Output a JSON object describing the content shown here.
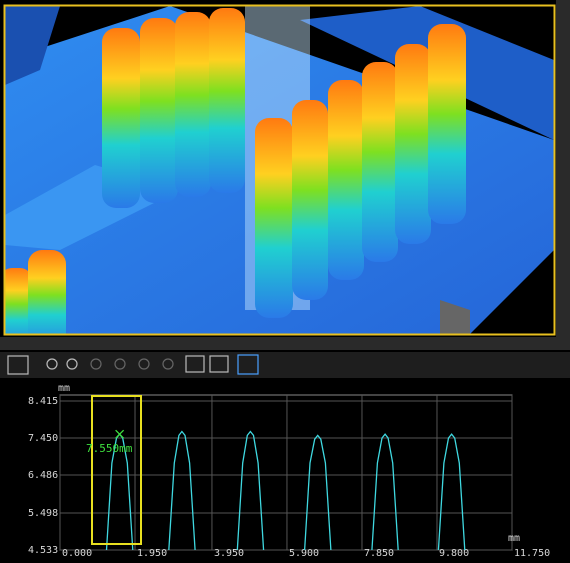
{
  "chart_data": {
    "type": "line",
    "ylabel": "mm",
    "xlabel": "mm",
    "annotation": "7.550mm",
    "x": [
      1.2,
      1.35,
      1.47,
      1.55,
      1.63,
      1.75,
      1.9,
      2.36,
      2.82,
      2.97,
      3.09,
      3.17,
      3.25,
      3.37,
      3.52,
      4.06,
      4.6,
      4.75,
      4.87,
      4.95,
      5.03,
      5.15,
      5.3,
      5.82,
      6.35,
      6.5,
      6.62,
      6.7,
      6.78,
      6.9,
      7.05,
      7.57,
      8.1,
      8.25,
      8.37,
      8.45,
      8.53,
      8.65,
      8.8,
      9.31,
      9.83,
      9.98,
      10.1,
      10.18,
      10.26,
      10.38,
      10.53
    ],
    "series": [
      {
        "color": "#3fd8e0",
        "values": [
          4.4,
          6.8,
          7.45,
          7.55,
          7.45,
          6.8,
          4.4,
          null,
          4.4,
          6.8,
          7.52,
          7.62,
          7.52,
          6.8,
          4.4,
          null,
          4.4,
          6.8,
          7.52,
          7.62,
          7.52,
          6.8,
          4.4,
          null,
          4.4,
          6.8,
          7.42,
          7.52,
          7.42,
          6.8,
          4.4,
          null,
          4.4,
          6.8,
          7.45,
          7.55,
          7.45,
          6.8,
          4.4,
          null,
          4.4,
          6.8,
          7.45,
          7.55,
          7.45,
          6.8,
          4.4
        ]
      }
    ],
    "xlim": [
      0,
      11.75
    ],
    "xticks": [
      {
        "value": 0,
        "label": "0.000"
      },
      {
        "value": 1.95,
        "label": "1.950"
      },
      {
        "value": 3.95,
        "label": "3.950"
      },
      {
        "value": 5.9,
        "label": "5.900"
      },
      {
        "value": 7.85,
        "label": "7.850"
      },
      {
        "value": 9.8,
        "label": "9.800"
      },
      {
        "value": 11.75,
        "label": "11.750"
      }
    ],
    "ylim": [
      4.533,
      8.415
    ],
    "yticks": [
      8.415,
      {
        "value": 7.45,
        "label": "7.450"
      },
      6.486,
      5.498,
      4.533
    ],
    "grid": true
  }
}
